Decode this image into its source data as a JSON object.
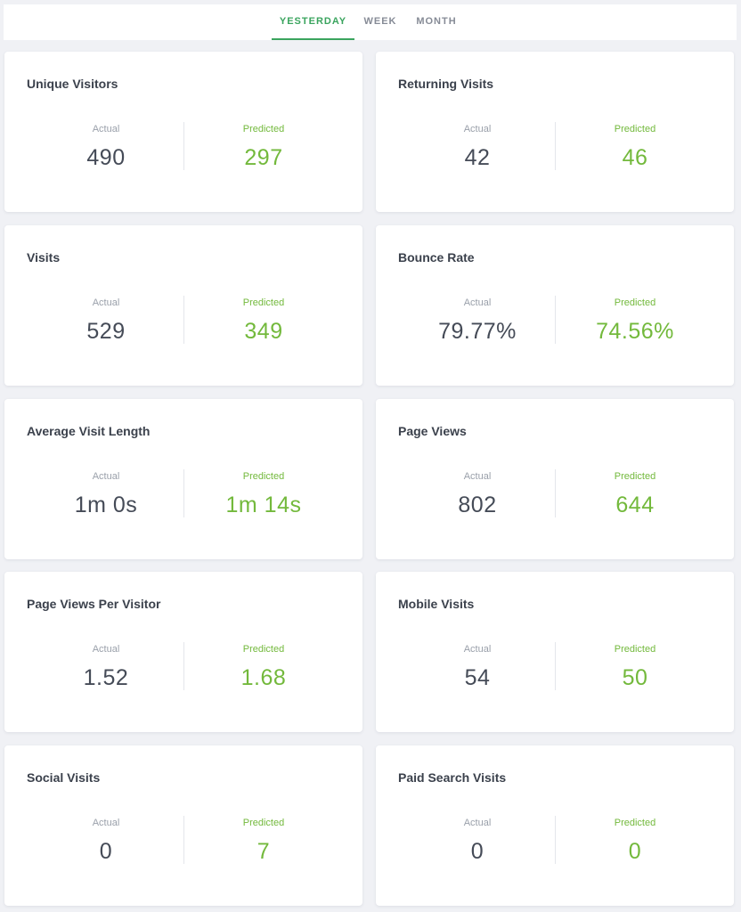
{
  "tabs": [
    {
      "label": "YESTERDAY",
      "active": true
    },
    {
      "label": "WEEK",
      "active": false
    },
    {
      "label": "MONTH",
      "active": false
    }
  ],
  "labels": {
    "actual": "Actual",
    "predicted": "Predicted"
  },
  "colors": {
    "accent_tab": "#3aa45e",
    "predicted": "#73b93c",
    "actual": "#454b57"
  },
  "cards": [
    {
      "title": "Unique Visitors",
      "actual": "490",
      "predicted": "297"
    },
    {
      "title": "Returning Visits",
      "actual": "42",
      "predicted": "46"
    },
    {
      "title": "Visits",
      "actual": "529",
      "predicted": "349"
    },
    {
      "title": "Bounce Rate",
      "actual": "79.77%",
      "predicted": "74.56%"
    },
    {
      "title": "Average Visit Length",
      "actual": "1m 0s",
      "predicted": "1m 14s"
    },
    {
      "title": "Page Views",
      "actual": "802",
      "predicted": "644"
    },
    {
      "title": "Page Views Per Visitor",
      "actual": "1.52",
      "predicted": "1.68"
    },
    {
      "title": "Mobile Visits",
      "actual": "54",
      "predicted": "50"
    },
    {
      "title": "Social Visits",
      "actual": "0",
      "predicted": "7"
    },
    {
      "title": "Paid Search Visits",
      "actual": "0",
      "predicted": "0"
    }
  ]
}
